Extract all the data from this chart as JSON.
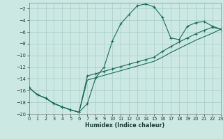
{
  "xlabel": "Humidex (Indice chaleur)",
  "background_color": "#cce8e2",
  "grid_color": "#a8ccc8",
  "line_color": "#1a6b5a",
  "xlim": [
    0,
    23
  ],
  "ylim": [
    -20,
    -1
  ],
  "yticks": [
    -20,
    -18,
    -16,
    -14,
    -12,
    -10,
    -8,
    -6,
    -4,
    -2
  ],
  "xticks": [
    0,
    1,
    2,
    3,
    4,
    5,
    6,
    7,
    8,
    9,
    10,
    11,
    12,
    13,
    14,
    15,
    16,
    17,
    18,
    19,
    20,
    21,
    22,
    23
  ],
  "curve1_x": [
    0,
    1,
    2,
    3,
    4,
    5,
    6,
    7,
    8,
    9,
    10,
    11,
    12,
    13,
    14,
    15,
    16,
    17,
    18,
    19,
    20,
    21,
    22,
    23
  ],
  "curve1_y": [
    -15.5,
    -16.7,
    -17.3,
    -18.2,
    -18.8,
    -19.3,
    -19.7,
    -18.2,
    -13.8,
    -12.0,
    -7.5,
    -4.6,
    -3.0,
    -1.5,
    -1.2,
    -1.7,
    -3.5,
    -7.0,
    -7.3,
    -5.0,
    -4.4,
    -4.2,
    -5.0,
    -5.5
  ],
  "curve2_x": [
    0,
    1,
    2,
    3,
    4,
    5,
    6,
    7,
    8,
    9,
    10,
    11,
    12,
    13,
    14,
    15,
    16,
    17,
    18,
    19,
    20,
    21,
    22,
    23
  ],
  "curve2_y": [
    -15.5,
    -16.7,
    -17.3,
    -18.2,
    -18.8,
    -19.3,
    -19.7,
    -13.5,
    -13.1,
    -12.7,
    -12.3,
    -11.9,
    -11.5,
    -11.1,
    -10.7,
    -10.3,
    -9.3,
    -8.5,
    -7.7,
    -7.0,
    -6.3,
    -5.7,
    -5.2,
    -5.5
  ],
  "curve3_x": [
    0,
    1,
    2,
    3,
    4,
    5,
    6,
    7,
    8,
    9,
    10,
    11,
    12,
    13,
    14,
    15,
    16,
    17,
    18,
    19,
    20,
    21,
    22,
    23
  ],
  "curve3_y": [
    -15.5,
    -16.7,
    -17.3,
    -18.2,
    -18.8,
    -19.3,
    -19.7,
    -14.2,
    -13.8,
    -13.4,
    -13.0,
    -12.6,
    -12.2,
    -11.8,
    -11.4,
    -11.0,
    -10.3,
    -9.5,
    -8.8,
    -8.1,
    -7.4,
    -6.8,
    -6.2,
    -5.5
  ]
}
